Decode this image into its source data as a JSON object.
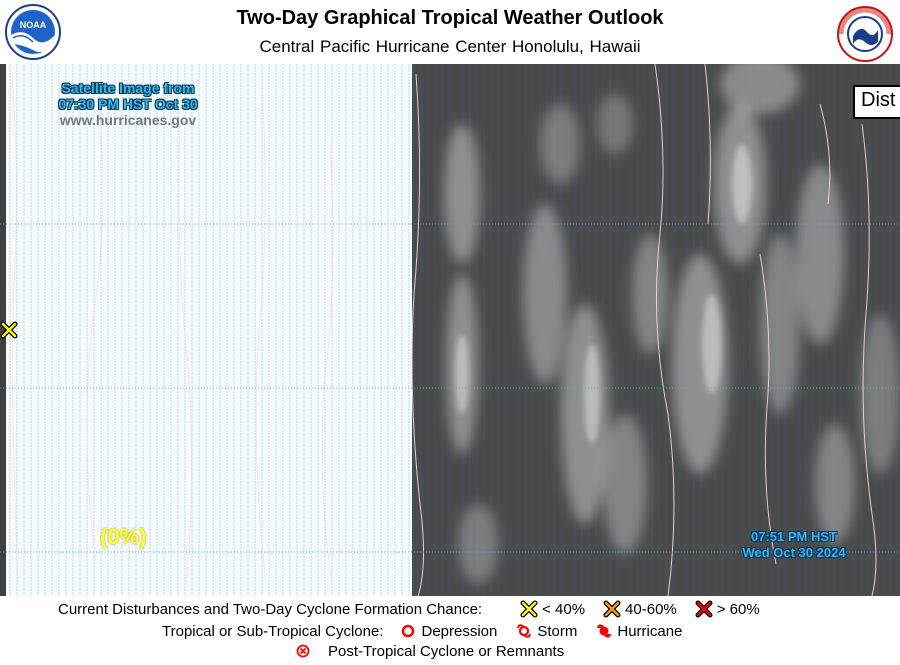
{
  "header": {
    "title": "Two-Day Graphical Tropical Weather Outlook",
    "subtitle": "Central Pacific Hurricane Center  Honolulu, Hawaii",
    "noaa_logo_text": "NOAA",
    "nws_logo_text": "NATIONAL WEATHER SERVICE"
  },
  "map": {
    "satellite_caption_line1": "Satellite Image from",
    "satellite_caption_line2": "07:30 PM HST Oct 30",
    "website": "www.hurricanes.gov",
    "area_chance": "(0%)",
    "timestamp_line1": "07:51 PM HST",
    "timestamp_line2": "Wed Oct 30 2024",
    "dist_label": "Dist"
  },
  "legend": {
    "row1_label": "Current Disturbances and Two-Day Cyclone Formation Chance:",
    "low": "< 40%",
    "medium": "40-60%",
    "high": "> 60%",
    "row2_label": "Tropical or Sub-Tropical Cyclone:",
    "depression": "Depression",
    "storm": "Storm",
    "hurricane": "Hurricane",
    "post_tropical": "Post-Tropical Cyclone or Remnants"
  },
  "colors": {
    "low": "#ffff00",
    "medium": "#ff9900",
    "high": "#ff0000",
    "cyclone": "#ff0000",
    "caption": "#33bbee"
  }
}
